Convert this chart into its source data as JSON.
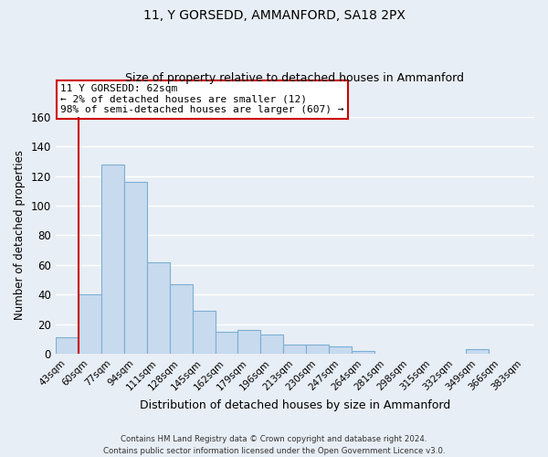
{
  "title": "11, Y GORSEDD, AMMANFORD, SA18 2PX",
  "subtitle": "Size of property relative to detached houses in Ammanford",
  "xlabel": "Distribution of detached houses by size in Ammanford",
  "ylabel": "Number of detached properties",
  "bar_color": "#c8daee",
  "bar_edge_color": "#7bafd4",
  "categories": [
    "43sqm",
    "60sqm",
    "77sqm",
    "94sqm",
    "111sqm",
    "128sqm",
    "145sqm",
    "162sqm",
    "179sqm",
    "196sqm",
    "213sqm",
    "230sqm",
    "247sqm",
    "264sqm",
    "281sqm",
    "298sqm",
    "315sqm",
    "332sqm",
    "349sqm",
    "366sqm",
    "383sqm"
  ],
  "values": [
    11,
    40,
    128,
    116,
    62,
    47,
    29,
    15,
    16,
    13,
    6,
    6,
    5,
    2,
    0,
    0,
    0,
    0,
    3,
    0,
    0
  ],
  "ylim": [
    0,
    160
  ],
  "yticks": [
    0,
    20,
    40,
    60,
    80,
    100,
    120,
    140,
    160
  ],
  "marker_bin_index": 1,
  "marker_color": "#cc0000",
  "annotation_title": "11 Y GORSEDD: 62sqm",
  "annotation_line1": "← 2% of detached houses are smaller (12)",
  "annotation_line2": "98% of semi-detached houses are larger (607) →",
  "footer1": "Contains HM Land Registry data © Crown copyright and database right 2024.",
  "footer2": "Contains public sector information licensed under the Open Government Licence v3.0.",
  "background_color": "#e8eef5",
  "grid_color": "#ffffff",
  "annotation_box_color": "#ffffff",
  "annotation_border_color": "#cc0000"
}
